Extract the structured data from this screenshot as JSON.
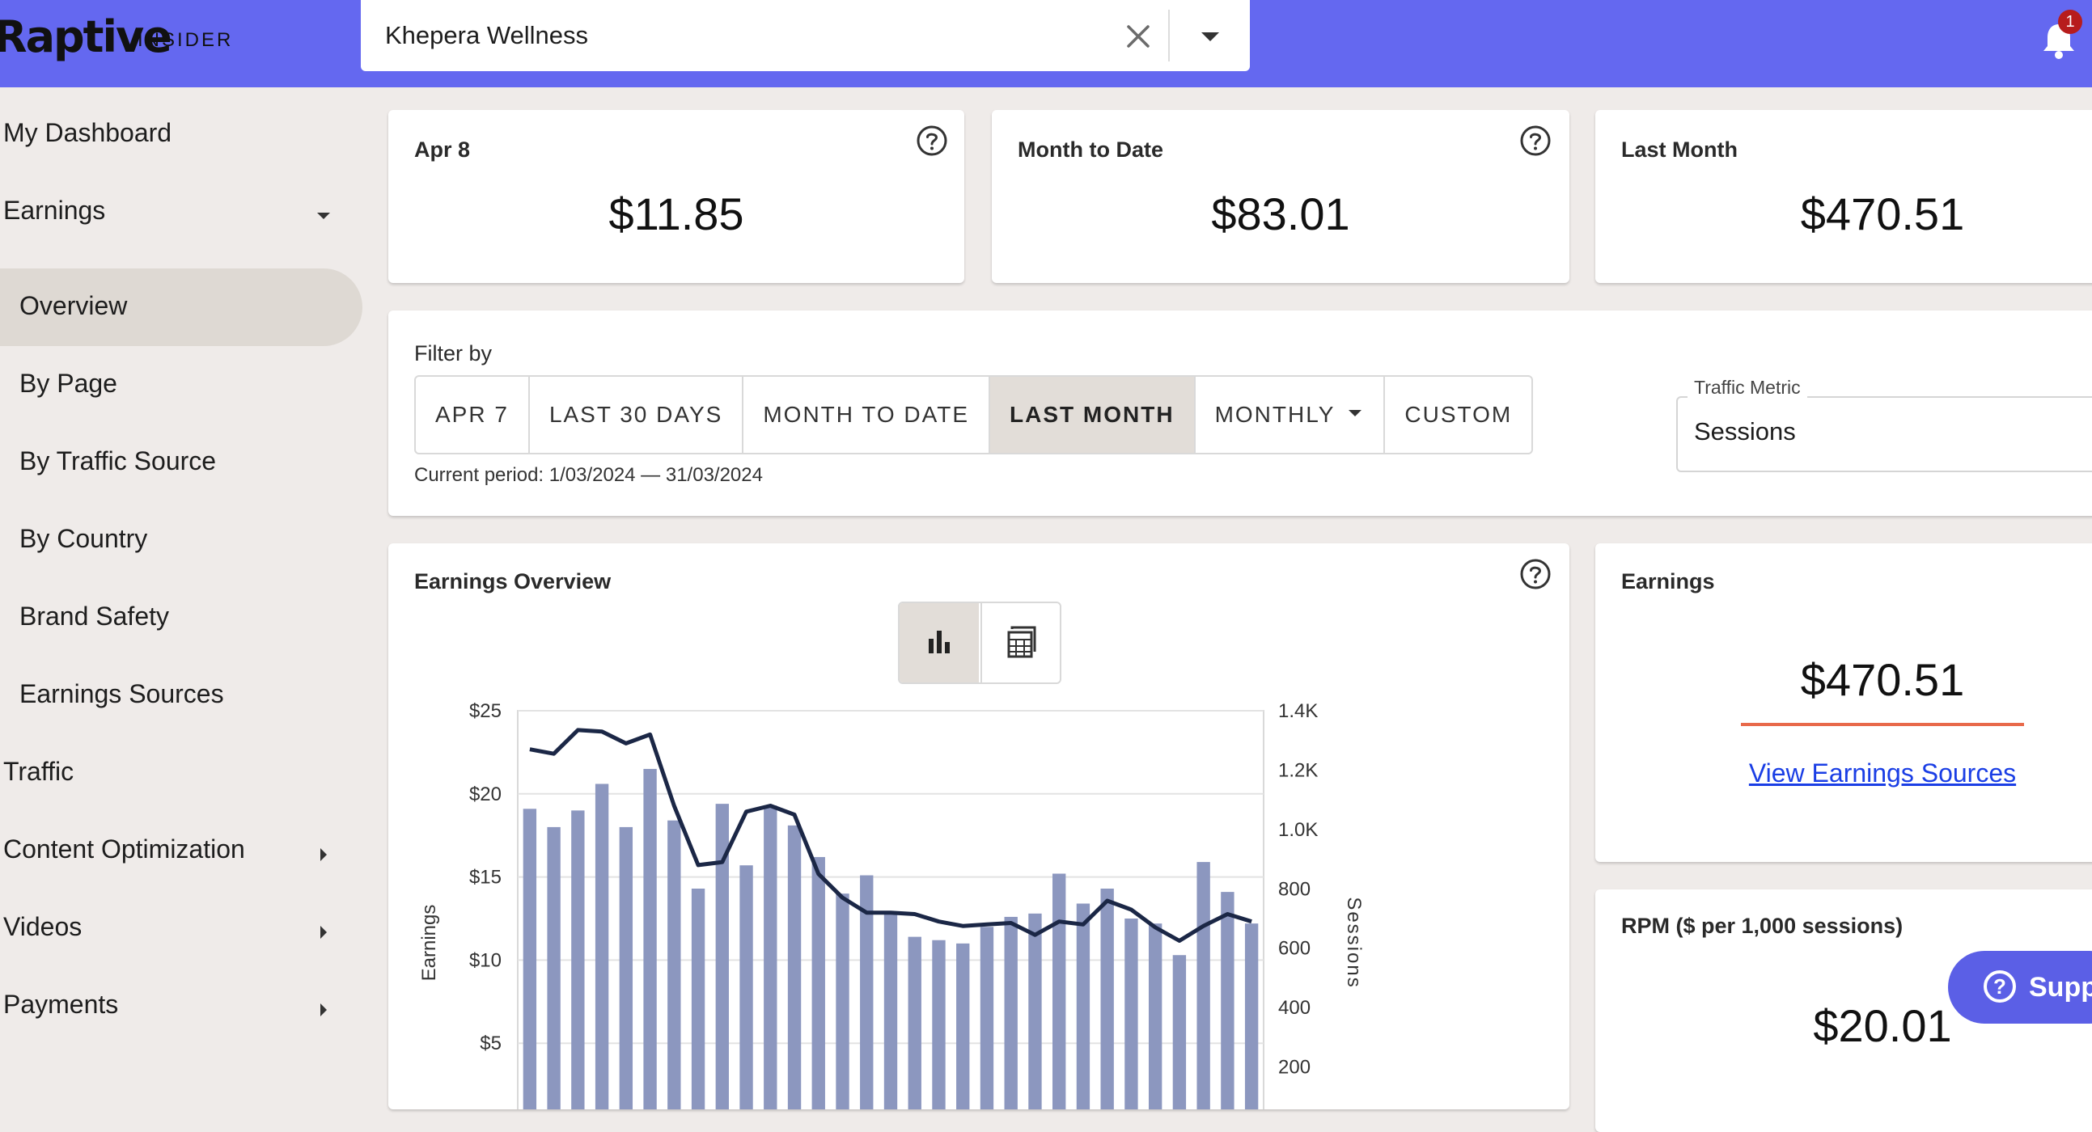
{
  "header": {
    "logo_text": "Raptive",
    "logo_sub": "INSIDER",
    "site_select_value": "Khepera Wellness",
    "notification_count": "1"
  },
  "sidebar": {
    "items": [
      {
        "label": "My Dashboard"
      },
      {
        "label": "Earnings"
      },
      {
        "label": "Overview"
      },
      {
        "label": "By Page"
      },
      {
        "label": "By Traffic Source"
      },
      {
        "label": "By Country"
      },
      {
        "label": "Brand Safety"
      },
      {
        "label": "Earnings Sources"
      },
      {
        "label": "Traffic"
      },
      {
        "label": "Content Optimization"
      },
      {
        "label": "Videos"
      },
      {
        "label": "Payments"
      }
    ]
  },
  "summary": {
    "day": {
      "title": "Apr 8",
      "value": "$11.85"
    },
    "mtd": {
      "title": "Month to Date",
      "value": "$83.01"
    },
    "last_month": {
      "title": "Last Month",
      "value": "$470.51"
    }
  },
  "filter": {
    "label": "Filter by",
    "options": [
      "APR 7",
      "LAST 30 DAYS",
      "MONTH TO DATE",
      "LAST MONTH",
      "MONTHLY",
      "CUSTOM"
    ],
    "selected": "LAST MONTH",
    "current_period": "Current period: 1/03/2024 — 31/03/2024",
    "traffic_metric_label": "Traffic Metric",
    "traffic_metric_value": "Sessions"
  },
  "earnings_overview": {
    "title": "Earnings Overview"
  },
  "earnings_card": {
    "title": "Earnings",
    "value": "$470.51",
    "link": "View Earnings Sources"
  },
  "rpm_card": {
    "title": "RPM ($ per 1,000 sessions)",
    "value": "$20.01"
  },
  "support": {
    "label": "Support"
  },
  "colors": {
    "header": "#6468f0",
    "bar": "#8c97bf",
    "line": "#1b2746",
    "accent_underline": "#e8694a",
    "link": "#1a3ee5"
  },
  "chart_data": {
    "type": "bar",
    "title": "",
    "ylabel": "Earnings",
    "y2label": "Sessions",
    "ylim": [
      0,
      25
    ],
    "y2lim": [
      0,
      1400
    ],
    "yticks": [
      "$5",
      "$10",
      "$15",
      "$20",
      "$25"
    ],
    "y2ticks": [
      "200",
      "400",
      "600",
      "800",
      "1.0K",
      "1.2K",
      "1.4K"
    ],
    "series": [
      {
        "name": "Earnings",
        "type": "bar",
        "values": [
          19.1,
          18.0,
          19.0,
          20.6,
          18.0,
          21.5,
          18.4,
          14.3,
          19.4,
          15.7,
          19.3,
          18.1,
          16.2,
          14.0,
          15.1,
          12.9,
          11.4,
          11.2,
          11.0,
          12.0,
          12.6,
          12.8,
          15.2,
          13.4,
          14.3,
          12.5,
          12.2,
          10.3,
          15.9,
          14.1,
          12.2
        ]
      },
      {
        "name": "Sessions",
        "type": "line",
        "values": [
          1270,
          1255,
          1335,
          1330,
          1290,
          1320,
          1080,
          880,
          890,
          1060,
          1080,
          1050,
          850,
          770,
          720,
          720,
          715,
          690,
          675,
          680,
          685,
          645,
          690,
          680,
          760,
          730,
          670,
          625,
          675,
          715,
          690
        ]
      }
    ]
  }
}
